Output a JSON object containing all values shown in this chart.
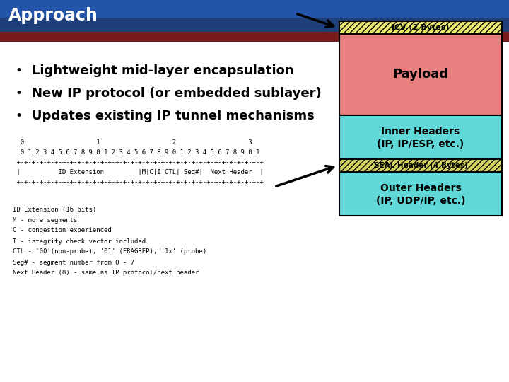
{
  "title": "Approach",
  "title_bg_dark": "#1e3f7a",
  "title_bg_light": "#2255aa",
  "red_bar_color": "#7a1a1a",
  "bullet_points": [
    "Lightweight mid-layer encapsulation",
    "New IP protocol (or embedded sublayer)",
    "Updates existing IP tunnel mechanisms"
  ],
  "code_lines": [
    "  0                   1                   2                   3",
    "  0 1 2 3 4 5 6 7 8 9 0 1 2 3 4 5 6 7 8 9 0 1 2 3 4 5 6 7 8 9 0 1",
    " +-+-+-+-+-+-+-+-+-+-+-+-+-+-+-+-+-+-+-+-+-+-+-+-+-+-+-+-+-+-+-+-+",
    " |          ID Extension         |M|C|I|CTL| Seg#|  Next Header  |",
    " +-+-+-+-+-+-+-+-+-+-+-+-+-+-+-+-+-+-+-+-+-+-+-+-+-+-+-+-+-+-+-+-+"
  ],
  "legend_lines": [
    "ID Extension (16 bits)",
    "M - more segments",
    "C - congestion experienced",
    "I - integrity check vector included",
    "CTL - '00'(non-probe), '01' (FRAGREP), '1x' (probe)",
    "Seg# - segment number from 0 - 7",
    "Next Header (8) - same as IP protocol/next header"
  ],
  "icv_label": "ICV (2 Bytes)",
  "payload_label": "Payload",
  "payload_color": "#e88080",
  "inner_label1": "Inner Headers",
  "inner_label2": "(IP, IP/ESP, etc.)",
  "inner_color": "#60d8d8",
  "seal_label": "SEAL Header (4 Bytes)",
  "seal_bg": "#d4d460",
  "outer_label1": "Outer Headers",
  "outer_label2": "(IP, UDP/IP, etc.)",
  "outer_color": "#60d8d8"
}
